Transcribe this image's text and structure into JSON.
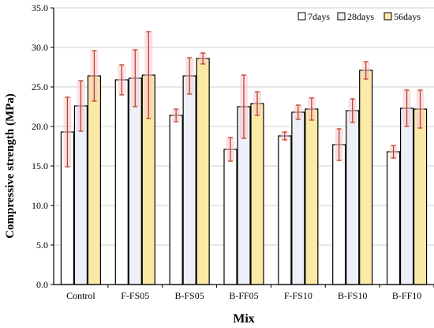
{
  "chart_data": {
    "type": "bar",
    "title": "",
    "xlabel": "Mix",
    "ylabel": "Compressive strength (MPa)",
    "ylim": [
      0,
      35
    ],
    "yticks": [
      "0.0",
      "5.0",
      "10.0",
      "15.0",
      "20.0",
      "25.0",
      "30.0",
      "35.0"
    ],
    "grid": "horizontal",
    "legend_position": "top-right",
    "categories": [
      "Control",
      "F-FS05",
      "B-FS05",
      "B-FF05",
      "F-FS10",
      "B-FS10",
      "B-FF10"
    ],
    "series": [
      {
        "name": "7days",
        "color": "#ffffff",
        "values": [
          19.3,
          25.9,
          21.4,
          17.1,
          18.8,
          17.7,
          16.8
        ],
        "errors": [
          4.4,
          1.9,
          0.8,
          1.5,
          0.5,
          2.0,
          0.8
        ]
      },
      {
        "name": "28days",
        "color": "#eef0f8",
        "values": [
          22.6,
          26.1,
          26.4,
          22.5,
          21.8,
          22.0,
          22.3
        ],
        "errors": [
          3.2,
          3.6,
          2.3,
          4.0,
          0.9,
          1.5,
          2.3
        ]
      },
      {
        "name": "56days",
        "color": "#fbe9a6",
        "values": [
          26.4,
          26.5,
          28.6,
          22.9,
          22.2,
          27.1,
          22.2
        ],
        "errors": [
          3.2,
          5.5,
          0.7,
          1.5,
          1.4,
          1.1,
          2.4
        ]
      }
    ],
    "error_bar_color": "#b8461e",
    "error_shade_color": "#f6c6d2"
  }
}
